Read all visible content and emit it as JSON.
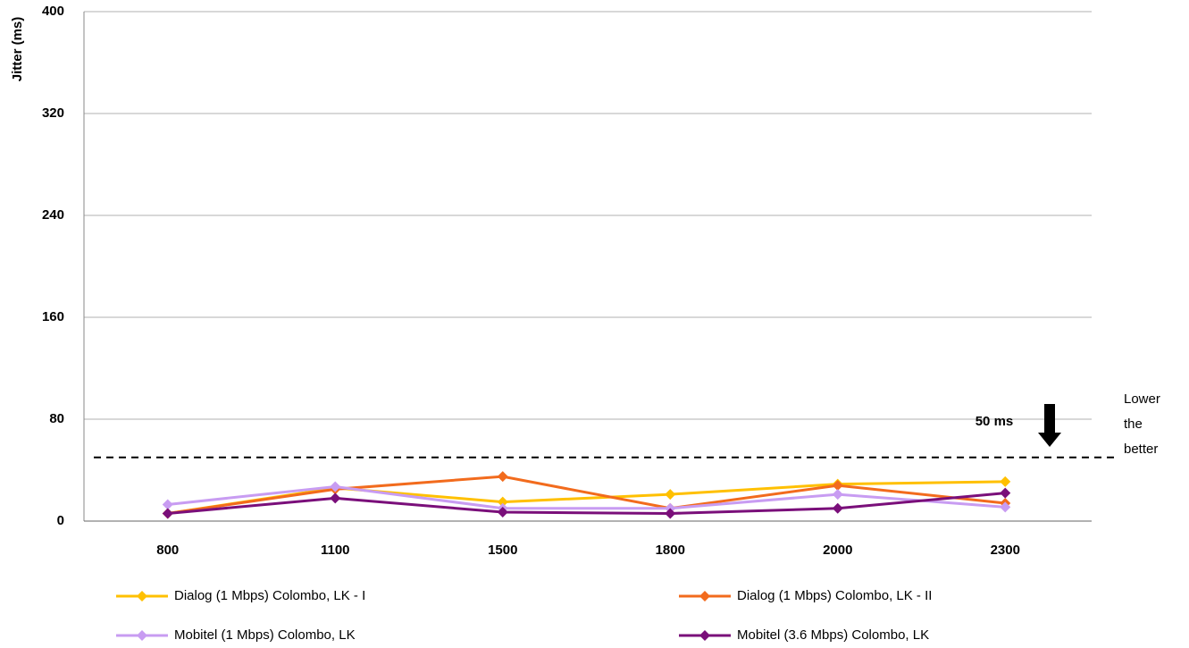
{
  "chart_data": {
    "type": "line",
    "y_label": "Jitter (ms)",
    "categories": [
      "800",
      "1100",
      "1500",
      "1800",
      "2000",
      "2300"
    ],
    "series": [
      {
        "name": "Dialog (1 Mbps) Colombo, LK - I",
        "color": "#ffc000",
        "values": [
          6,
          26,
          15,
          21,
          29,
          31
        ]
      },
      {
        "name": "Dialog (1 Mbps) Colombo, LK - II",
        "color": "#f26b1d",
        "values": [
          6,
          25,
          35,
          10,
          28,
          14
        ]
      },
      {
        "name": "Mobitel (1 Mbps) Colombo, LK",
        "color": "#c89cf2",
        "values": [
          13,
          27,
          10,
          10,
          21,
          11
        ]
      },
      {
        "name": "Mobitel (3.6 Mbps) Colombo, LK",
        "color": "#7a0f7a",
        "values": [
          6,
          18,
          7,
          6,
          10,
          22
        ]
      }
    ],
    "ylim": [
      0,
      400
    ],
    "yticks": [
      0,
      80,
      160,
      240,
      320,
      400
    ],
    "grid": true,
    "threshold": {
      "value": 50,
      "label": "50 ms"
    },
    "annotation": [
      "Lower",
      "the",
      "better"
    ]
  }
}
